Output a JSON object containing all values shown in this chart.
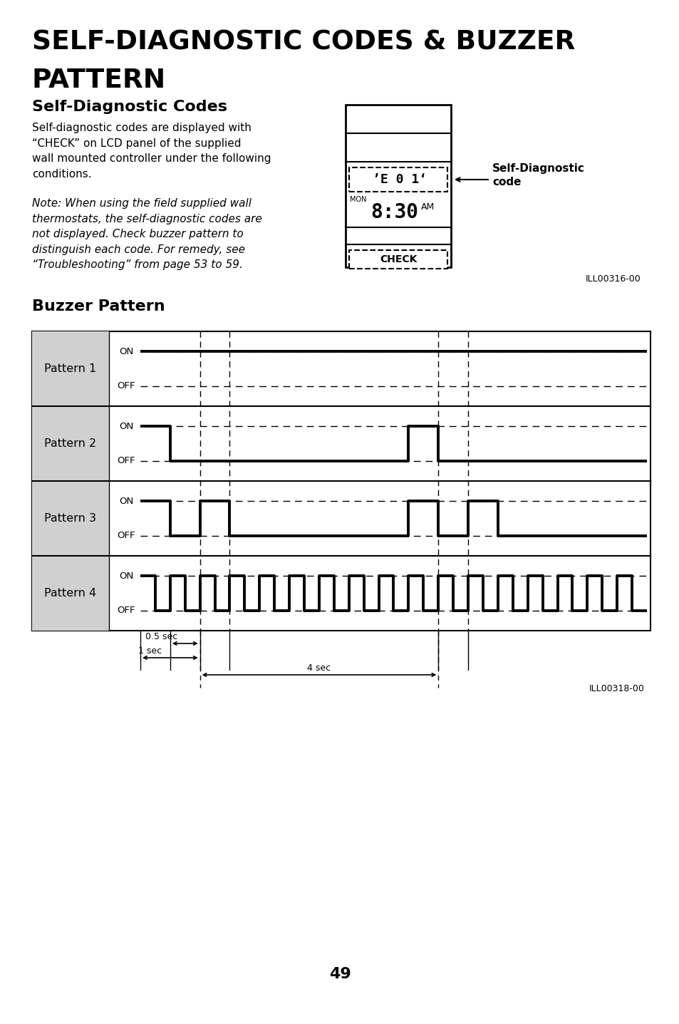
{
  "title_line1": "SELF-DIAGNOSTIC CODES & BUZZER",
  "title_line2": "PATTERN",
  "section1_title": "Self-Diagnostic Codes",
  "section1_body": "Self-diagnostic codes are displayed with\n“CHECK” on LCD panel of the supplied\nwall mounted controller under the following\nconditions.",
  "section1_note": "Note: When using the field supplied wall\nthermostats, the self-diagnostic codes are\nnot displayed. Check buzzer pattern to\ndistinguish each code. For remedy, see\n“Troubleshooting” from page 53 to 59.",
  "section1_ill": "ILL00316-00",
  "self_diag_label": "Self-Diagnostic\ncode",
  "section2_title": "Buzzer Pattern",
  "section2_ill": "ILL00318-00",
  "patterns": [
    "Pattern 1",
    "Pattern 2",
    "Pattern 3",
    "Pattern 4"
  ],
  "page_number": "49",
  "bg_color": "#ffffff",
  "text_color": "#000000",
  "label_bg_color": "#d0d0d0",
  "line_color": "#000000"
}
